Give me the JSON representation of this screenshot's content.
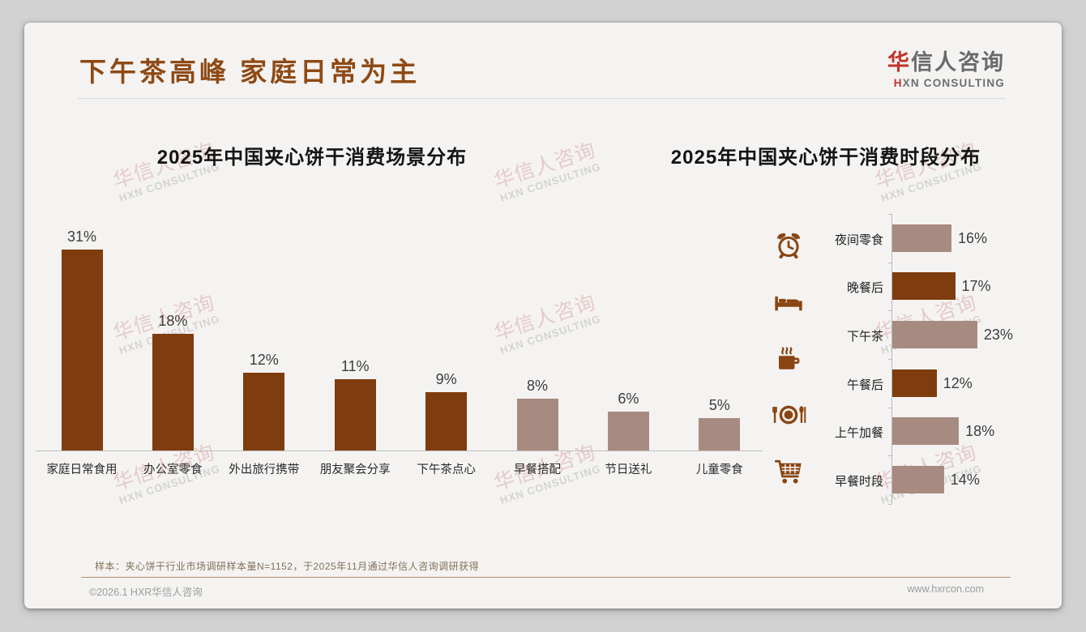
{
  "header": {
    "title": "下午茶高峰 家庭日常为主",
    "logo_cn_accent": "华",
    "logo_cn_rest": "信人咨询",
    "logo_en_accent": "H",
    "logo_en_rest": "XN CONSULTING"
  },
  "watermark": {
    "cn": "华信人咨询",
    "en": "HXN CONSULTING"
  },
  "colors": {
    "page_background": "#d2d2d2",
    "card_background": "#f4f3f1",
    "title_brown": "#8e4a15",
    "bar_dark_brown": "#7f3c0f",
    "bar_mauve": "#a78b80",
    "logo_red": "#c1332a",
    "icon_brown": "#8a4512"
  },
  "chart_data": [
    {
      "type": "bar",
      "title": "2025年中国夹心饼干消费场景分布",
      "categories": [
        "家庭日常食用",
        "办公室零食",
        "外出旅行携带",
        "朋友聚会分享",
        "下午茶点心",
        "早餐搭配",
        "节日送礼",
        "儿童零食"
      ],
      "values": [
        31,
        18,
        12,
        11,
        9,
        8,
        6,
        5
      ],
      "unit": "%",
      "value_labels": [
        "31%",
        "18%",
        "12%",
        "11%",
        "9%",
        "8%",
        "6%",
        "5%"
      ],
      "bar_colors": [
        "#7f3c0f",
        "#7f3c0f",
        "#7f3c0f",
        "#7f3c0f",
        "#7f3c0f",
        "#a78b80",
        "#a78b80",
        "#a78b80"
      ],
      "orientation": "vertical",
      "xlabel": "",
      "ylabel": "",
      "ylim": [
        0,
        33
      ],
      "grid": false,
      "legend": false
    },
    {
      "type": "bar",
      "title": "2025年中国夹心饼干消费时段分布",
      "categories": [
        "夜间零食",
        "晚餐后",
        "下午茶",
        "午餐后",
        "上午加餐",
        "早餐时段"
      ],
      "values": [
        16,
        17,
        23,
        12,
        18,
        14
      ],
      "unit": "%",
      "value_labels": [
        "16%",
        "17%",
        "23%",
        "12%",
        "18%",
        "14%"
      ],
      "bar_colors": [
        "#a78b80",
        "#7f3c0f",
        "#a78b80",
        "#7f3c0f",
        "#a78b80",
        "#a78b80"
      ],
      "orientation": "horizontal",
      "xlabel": "",
      "ylabel": "",
      "xlim": [
        0,
        25
      ],
      "grid": false,
      "legend": false,
      "icons": [
        "alarm-clock",
        "bed",
        "coffee-cup",
        "dining-plate",
        "shopping-cart"
      ]
    }
  ],
  "footer": {
    "note": "样本：夹心饼干行业市场调研样本量N=1152，于2025年11月通过华信人咨询调研获得",
    "copyright": "©2026.1 HXR华信人咨询",
    "website": "www.hxrcon.com"
  }
}
